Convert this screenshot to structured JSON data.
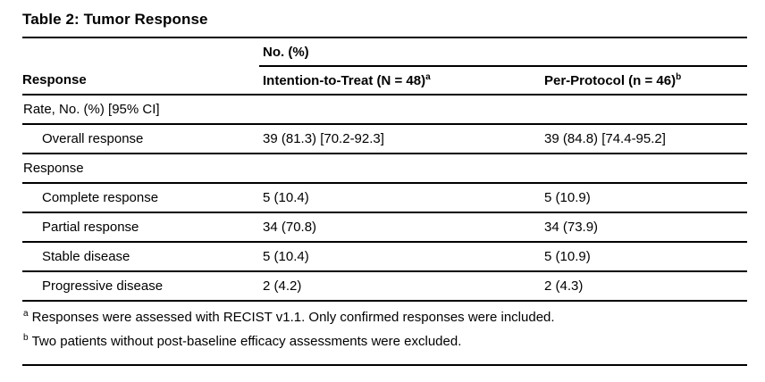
{
  "page": {
    "title": "Table 2: Tumor Response"
  },
  "table": {
    "spanner_header": "No. (%)",
    "columns": {
      "response": "Response",
      "itt_label": "Intention-to-Treat (N = 48)",
      "itt_sup": "a",
      "pp_label": "Per-Protocol (n = 46)",
      "pp_sup": "b"
    },
    "rows": [
      {
        "type": "section",
        "label": "Rate, No. (%) [95% CI]"
      },
      {
        "type": "item",
        "label": "Overall response",
        "itt": "39 (81.3) [70.2-92.3]",
        "pp": "39 (84.8) [74.4-95.2]"
      },
      {
        "type": "section",
        "label": "Response"
      },
      {
        "type": "item",
        "label": "Complete response",
        "itt": "5 (10.4)",
        "pp": "5 (10.9)"
      },
      {
        "type": "item",
        "label": "Partial response",
        "itt": "34 (70.8)",
        "pp": "34 (73.9)"
      },
      {
        "type": "item",
        "label": "Stable disease",
        "itt": "5 (10.4)",
        "pp": "5 (10.9)"
      },
      {
        "type": "item",
        "label": "Progressive disease",
        "itt": "2 (4.2)",
        "pp": "2 (4.3)"
      }
    ],
    "footnotes": [
      {
        "sup": "a",
        "text": "Responses were assessed with RECIST v1.1. Only confirmed responses were included."
      },
      {
        "sup": "b",
        "text": "Two patients without post-baseline efficacy assessments were excluded."
      }
    ]
  },
  "colors": {
    "background": "#ffffff",
    "text": "#000000",
    "rule": "#000000"
  },
  "chart_data": {
    "type": "table",
    "title": "Table 2: Tumor Response",
    "columns": [
      "Response",
      "Intention-to-Treat (N = 48)",
      "Per-Protocol (n = 46)"
    ],
    "rows": [
      [
        "Rate, No. (%) [95% CI]",
        "",
        ""
      ],
      [
        "Overall response",
        "39 (81.3) [70.2-92.3]",
        "39 (84.8) [74.4-95.2]"
      ],
      [
        "Response",
        "",
        ""
      ],
      [
        "Complete response",
        "5 (10.4)",
        "5 (10.9)"
      ],
      [
        "Partial response",
        "34 (70.8)",
        "34 (73.9)"
      ],
      [
        "Stable disease",
        "5 (10.4)",
        "5 (10.9)"
      ],
      [
        "Progressive disease",
        "2 (4.2)",
        "2 (4.3)"
      ]
    ]
  }
}
